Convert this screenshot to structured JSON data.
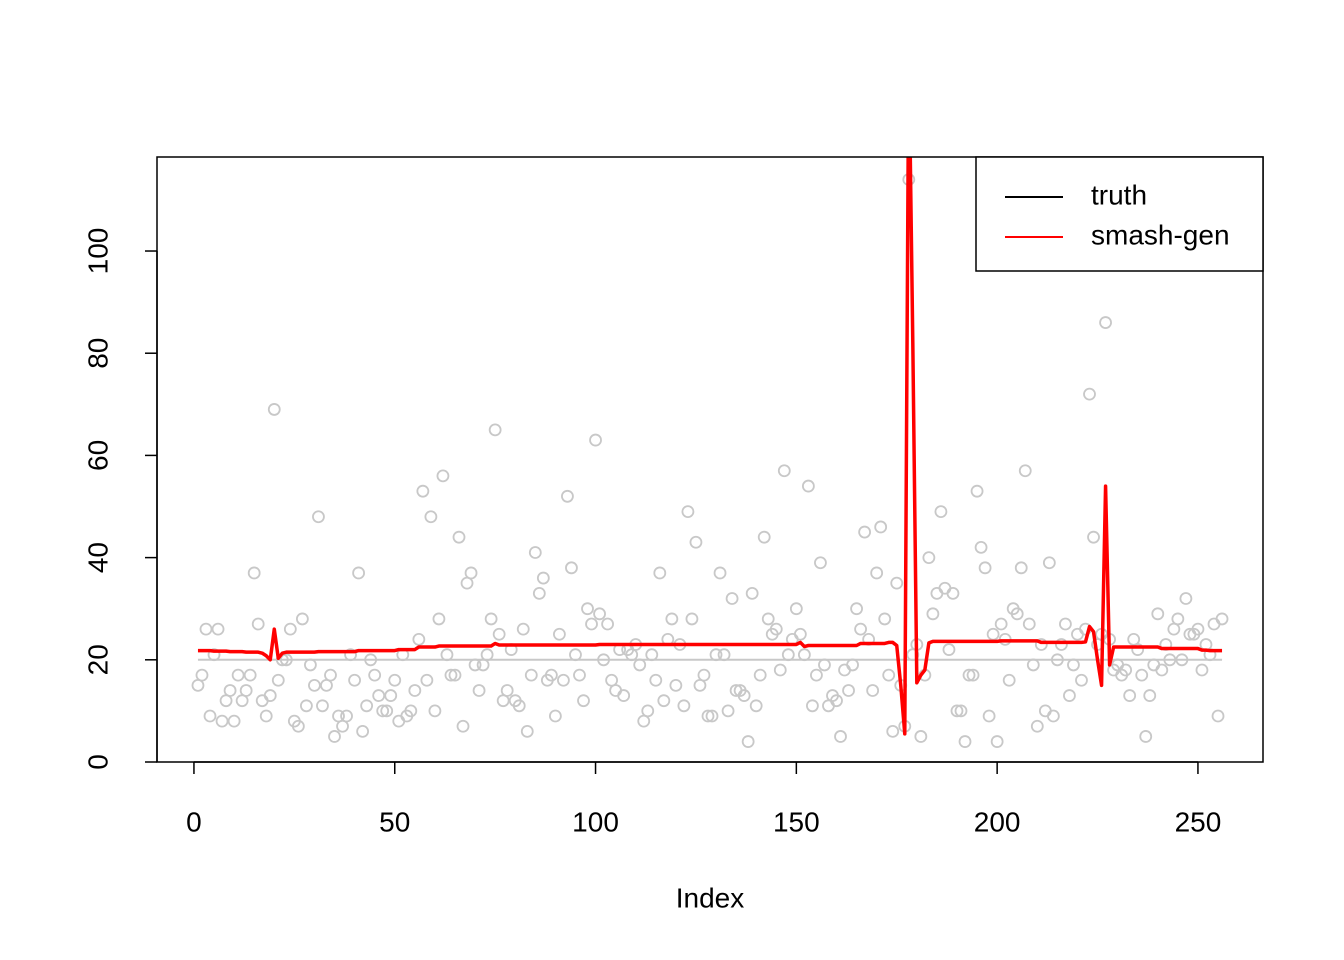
{
  "chart_data": {
    "type": "line",
    "x_label": "Index",
    "xlim": [
      -9.2,
      266.2
    ],
    "ylim": [
      0,
      118.4
    ],
    "xticks": [
      0,
      50,
      100,
      150,
      200,
      250
    ],
    "yticks": [
      0,
      20,
      40,
      60,
      80,
      100
    ],
    "legend": "top-right",
    "x": [
      1,
      2,
      3,
      4,
      5,
      6,
      7,
      8,
      9,
      10,
      11,
      12,
      13,
      14,
      15,
      16,
      17,
      18,
      19,
      20,
      21,
      22,
      23,
      24,
      25,
      26,
      27,
      28,
      29,
      30,
      31,
      32,
      33,
      34,
      35,
      36,
      37,
      38,
      39,
      40,
      41,
      42,
      43,
      44,
      45,
      46,
      47,
      48,
      49,
      50,
      51,
      52,
      53,
      54,
      55,
      56,
      57,
      58,
      59,
      60,
      61,
      62,
      63,
      64,
      65,
      66,
      67,
      68,
      69,
      70,
      71,
      72,
      73,
      74,
      75,
      76,
      77,
      78,
      79,
      80,
      81,
      82,
      83,
      84,
      85,
      86,
      87,
      88,
      89,
      90,
      91,
      92,
      93,
      94,
      95,
      96,
      97,
      98,
      99,
      100,
      101,
      102,
      103,
      104,
      105,
      106,
      107,
      108,
      109,
      110,
      111,
      112,
      113,
      114,
      115,
      116,
      117,
      118,
      119,
      120,
      121,
      122,
      123,
      124,
      125,
      126,
      127,
      128,
      129,
      130,
      131,
      132,
      133,
      134,
      135,
      136,
      137,
      138,
      139,
      140,
      141,
      142,
      143,
      144,
      145,
      146,
      147,
      148,
      149,
      150,
      151,
      152,
      153,
      154,
      155,
      156,
      157,
      158,
      159,
      160,
      161,
      162,
      163,
      164,
      165,
      166,
      167,
      168,
      169,
      170,
      171,
      172,
      173,
      174,
      175,
      176,
      177,
      178,
      179,
      180,
      181,
      182,
      183,
      184,
      185,
      186,
      187,
      188,
      189,
      190,
      191,
      192,
      193,
      194,
      195,
      196,
      197,
      198,
      199,
      200,
      201,
      202,
      203,
      204,
      205,
      206,
      207,
      208,
      209,
      210,
      211,
      212,
      213,
      214,
      215,
      216,
      217,
      218,
      219,
      220,
      221,
      222,
      223,
      224,
      225,
      226,
      227,
      228,
      229,
      230,
      231,
      232,
      233,
      234,
      235,
      236,
      237,
      238,
      239,
      240,
      241,
      242,
      243,
      244,
      245,
      246,
      247,
      248,
      249,
      250,
      251,
      252,
      253,
      254,
      255,
      256
    ],
    "points": {
      "color": "#c8c8c8",
      "values": [
        15,
        17,
        26,
        9,
        21,
        26,
        8,
        12,
        14,
        8,
        17,
        12,
        14,
        17,
        37,
        27,
        12,
        9,
        13,
        69,
        16,
        20,
        20,
        26,
        8,
        7,
        28,
        11,
        19,
        15,
        48,
        11,
        15,
        17,
        5,
        9,
        7,
        9,
        21,
        16,
        37,
        6,
        11,
        20,
        17,
        13,
        10,
        10,
        13,
        16,
        8,
        21,
        9,
        10,
        14,
        24,
        53,
        16,
        48,
        10,
        28,
        56,
        21,
        17,
        17,
        44,
        7,
        35,
        37,
        19,
        14,
        19,
        21,
        28,
        65,
        25,
        12,
        14,
        22,
        12,
        11,
        26,
        6,
        17,
        41,
        33,
        36,
        16,
        17,
        9,
        25,
        16,
        52,
        38,
        21,
        17,
        12,
        30,
        27,
        63,
        29,
        20,
        27,
        16,
        14,
        22,
        13,
        22,
        21,
        23,
        19,
        8,
        10,
        21,
        16,
        37,
        12,
        24,
        28,
        15,
        23,
        11,
        49,
        28,
        43,
        15,
        17,
        9,
        9,
        21,
        37,
        21,
        10,
        32,
        14,
        14,
        13,
        4,
        33,
        11,
        17,
        44,
        28,
        25,
        26,
        18,
        57,
        21,
        24,
        30,
        25,
        21,
        54,
        11,
        17,
        39,
        19,
        11,
        13,
        12,
        5,
        18,
        14,
        19,
        30,
        26,
        45,
        24,
        14,
        37,
        46,
        28,
        17,
        6,
        35,
        15,
        7,
        114,
        21,
        23,
        5,
        17,
        40,
        29,
        33,
        49,
        34,
        22,
        33,
        10,
        10,
        4,
        17,
        17,
        53,
        42,
        38,
        9,
        25,
        4,
        27,
        24,
        16,
        30,
        29,
        38,
        57,
        27,
        19,
        7,
        23,
        10,
        39,
        9,
        20,
        23,
        27,
        13,
        19,
        25,
        16,
        26,
        72,
        44,
        23,
        25,
        86,
        24,
        18,
        19,
        17,
        18,
        13,
        24,
        22,
        17,
        5,
        13,
        19,
        29,
        18,
        23,
        20,
        26,
        28,
        20,
        32,
        25,
        25,
        26,
        18,
        23,
        21,
        27,
        9,
        28
      ]
    },
    "series": [
      {
        "name": "truth",
        "color": "#c8c8c8",
        "legend_color": "#000000",
        "width": 2,
        "values": [
          20,
          20,
          20,
          20,
          20,
          20,
          20,
          20,
          20,
          20,
          20,
          20,
          20,
          20,
          20,
          20,
          20,
          20,
          20,
          20,
          20,
          20,
          20,
          20,
          20,
          20,
          20,
          20,
          20,
          20,
          20,
          20,
          20,
          20,
          20,
          20,
          20,
          20,
          20,
          20,
          20,
          20,
          20,
          20,
          20,
          20,
          20,
          20,
          20,
          20,
          20,
          20,
          20,
          20,
          20,
          20,
          20,
          20,
          20,
          20,
          20,
          20,
          20,
          20,
          20,
          20,
          20,
          20,
          20,
          20,
          20,
          20,
          20,
          20,
          20,
          20,
          20,
          20,
          20,
          20,
          20,
          20,
          20,
          20,
          20,
          20,
          20,
          20,
          20,
          20,
          20,
          20,
          20,
          20,
          20,
          20,
          20,
          20,
          20,
          20,
          20,
          20,
          20,
          20,
          20,
          20,
          20,
          20,
          20,
          20,
          20,
          20,
          20,
          20,
          20,
          20,
          20,
          20,
          20,
          20,
          20,
          20,
          20,
          20,
          20,
          20,
          20,
          20,
          20,
          20,
          20,
          20,
          20,
          20,
          20,
          20,
          20,
          20,
          20,
          20,
          20,
          20,
          20,
          20,
          20,
          20,
          20,
          20,
          20,
          20,
          20,
          20,
          20,
          20,
          20,
          20,
          20,
          20,
          20,
          20,
          20,
          20,
          20,
          20,
          20,
          20,
          20,
          20,
          20,
          20,
          20,
          20,
          20,
          20,
          20,
          20,
          20,
          20,
          20,
          20,
          20,
          20,
          20,
          20,
          20,
          20,
          20,
          20,
          20,
          20,
          20,
          20,
          20,
          20,
          20,
          20,
          20,
          20,
          20,
          20,
          20,
          20,
          20,
          20,
          20,
          20,
          20,
          20,
          20,
          20,
          20,
          20,
          20,
          20,
          20,
          20,
          20,
          20,
          20,
          20,
          20,
          20,
          20,
          20,
          20,
          20,
          20,
          20,
          20,
          20,
          20,
          20,
          20,
          20,
          20,
          20,
          20,
          20,
          20,
          20,
          20,
          20,
          20,
          20,
          20,
          20,
          20,
          20,
          20,
          20,
          20,
          20,
          20,
          20,
          20,
          20
        ]
      },
      {
        "name": "smash-gen",
        "color": "#ff0000",
        "legend_color": "#ff0000",
        "width": 3.5,
        "values": [
          21.8,
          21.8,
          21.8,
          21.8,
          21.7,
          21.7,
          21.7,
          21.7,
          21.6,
          21.6,
          21.6,
          21.6,
          21.5,
          21.5,
          21.5,
          21.5,
          21.3,
          20.8,
          20.0,
          26.0,
          20.3,
          21.3,
          21.5,
          21.5,
          21.5,
          21.5,
          21.5,
          21.5,
          21.5,
          21.5,
          21.6,
          21.6,
          21.6,
          21.6,
          21.6,
          21.6,
          21.6,
          21.6,
          21.6,
          21.6,
          21.8,
          21.8,
          21.8,
          21.8,
          21.8,
          21.8,
          21.8,
          21.8,
          21.8,
          21.8,
          22.0,
          22.0,
          22.0,
          22.0,
          22.0,
          22.5,
          22.5,
          22.5,
          22.5,
          22.5,
          22.7,
          22.7,
          22.7,
          22.7,
          22.7,
          22.7,
          22.7,
          22.7,
          22.7,
          22.7,
          22.7,
          22.7,
          22.7,
          22.7,
          23.2,
          22.9,
          22.9,
          22.9,
          22.9,
          22.9,
          22.9,
          22.9,
          22.9,
          22.9,
          22.9,
          22.9,
          22.9,
          22.9,
          22.9,
          22.9,
          22.9,
          22.9,
          22.9,
          22.9,
          22.9,
          22.9,
          22.9,
          22.9,
          22.9,
          22.9,
          23.0,
          23.0,
          23.0,
          23.0,
          23.0,
          23.0,
          23.0,
          23.0,
          23.0,
          23.0,
          23.0,
          23.0,
          23.0,
          23.0,
          23.0,
          23.0,
          23.0,
          23.0,
          23.0,
          23.0,
          23.0,
          23.0,
          23.0,
          23.0,
          23.0,
          23.0,
          23.0,
          23.0,
          23.0,
          23.0,
          23.0,
          23.0,
          23.0,
          23.0,
          23.0,
          23.0,
          23.0,
          23.0,
          23.0,
          23.0,
          23.0,
          23.0,
          23.0,
          23.0,
          23.0,
          23.0,
          23.0,
          23.0,
          23.0,
          23.0,
          23.4,
          22.6,
          22.8,
          22.8,
          22.8,
          22.8,
          22.8,
          22.8,
          22.8,
          22.8,
          22.8,
          22.8,
          22.8,
          22.8,
          22.8,
          23.2,
          23.2,
          23.2,
          23.2,
          23.2,
          23.2,
          23.2,
          23.4,
          23.4,
          22.8,
          15,
          5.5,
          140,
          82,
          15.5,
          17,
          18,
          23.3,
          23.6,
          23.6,
          23.6,
          23.6,
          23.6,
          23.6,
          23.6,
          23.6,
          23.6,
          23.6,
          23.6,
          23.6,
          23.6,
          23.6,
          23.6,
          23.6,
          23.6,
          23.7,
          23.7,
          23.7,
          23.7,
          23.7,
          23.7,
          23.7,
          23.7,
          23.7,
          23.7,
          23.4,
          23.4,
          23.4,
          23.4,
          23.4,
          23.4,
          23.4,
          23.4,
          23.4,
          23.4,
          23.4,
          23.5,
          26.5,
          25.5,
          20,
          15,
          54,
          19,
          22.5,
          22.5,
          22.5,
          22.5,
          22.5,
          22.5,
          22.5,
          22.5,
          22.5,
          22.5,
          22.5,
          22.5,
          22.2,
          22.2,
          22.2,
          22.2,
          22.2,
          22.2,
          22.2,
          22.2,
          22.2,
          22.2,
          21.9,
          21.9,
          21.8,
          21.8,
          21.8,
          21.8
        ]
      }
    ]
  }
}
